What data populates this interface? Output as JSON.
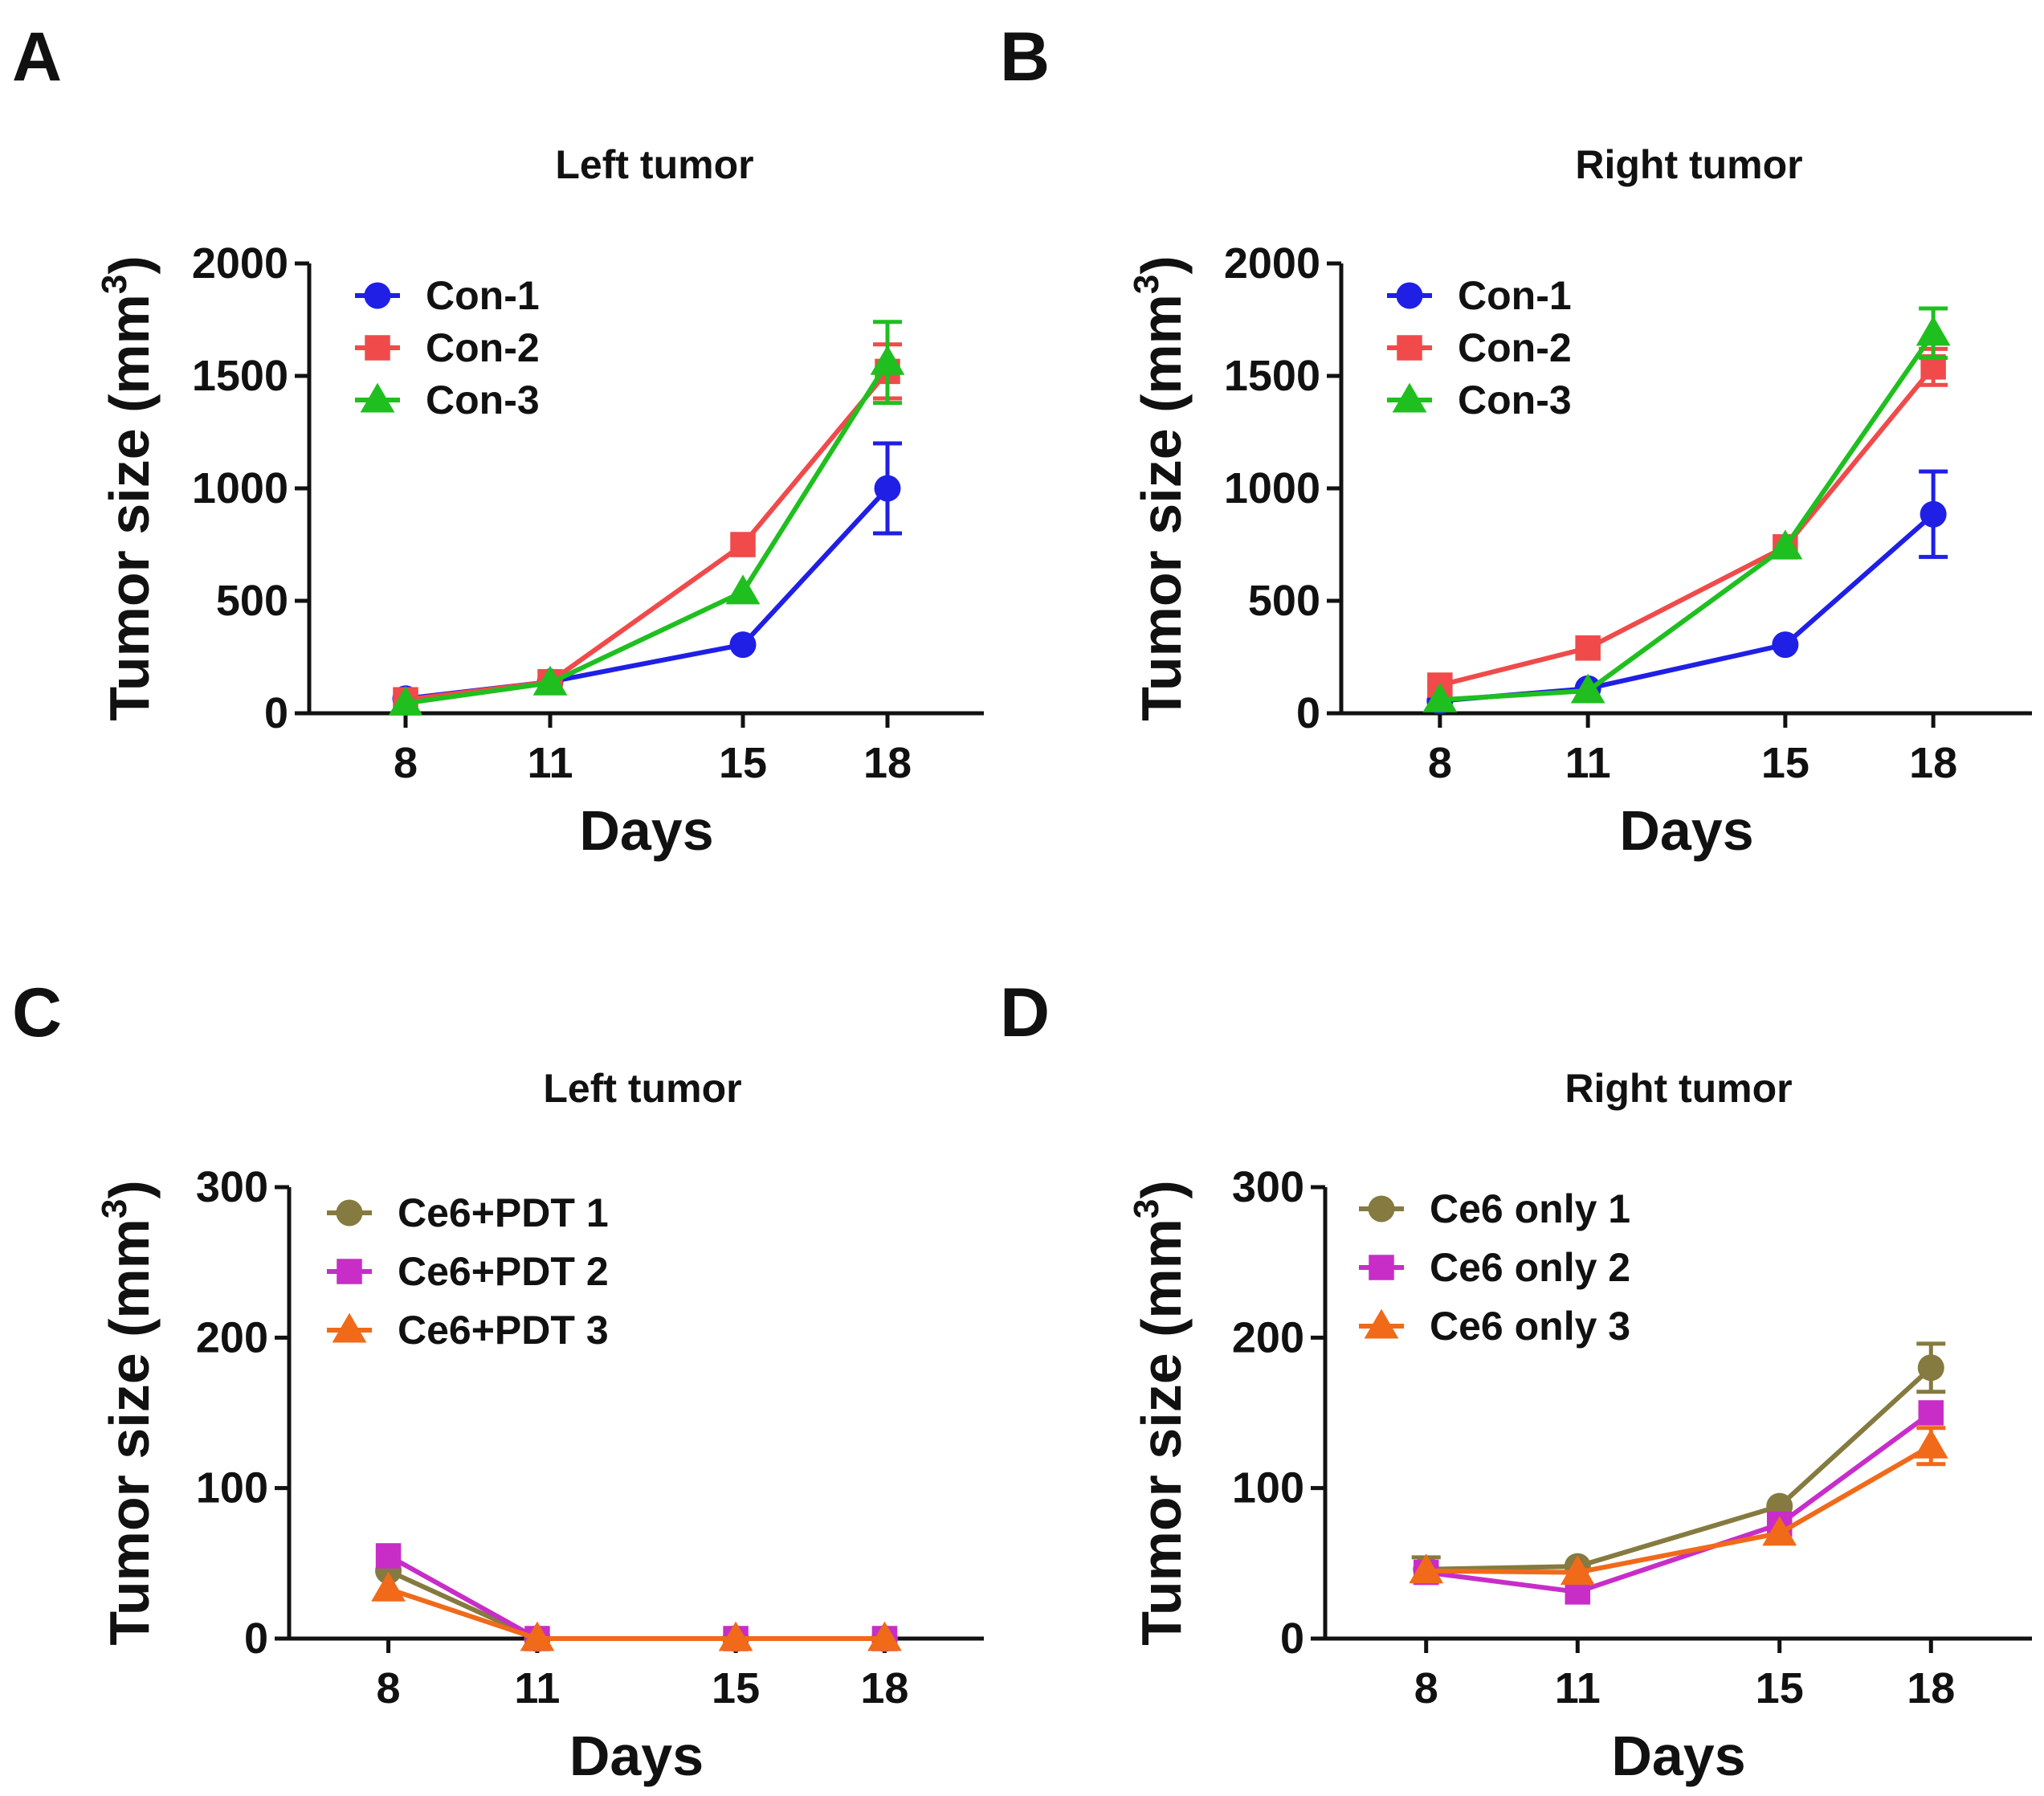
{
  "chart_data": [
    {
      "panel_label": "A",
      "type": "line",
      "title": "Left tumor",
      "xlabel": "Days",
      "ylabel": "Tumor size (mm",
      "ylabel_sup": "3",
      "ylabel_close": ")",
      "x": [
        8,
        11,
        15,
        18
      ],
      "x_tick_labels": [
        "8",
        "11",
        "15",
        "18"
      ],
      "xlim": [
        6,
        20
      ],
      "ylim": [
        0,
        2000
      ],
      "y_ticks": [
        0,
        500,
        1000,
        1500,
        2000
      ],
      "y_tick_labels": [
        "0",
        "500",
        "1000",
        "1500",
        "2000"
      ],
      "legend_position": "top-left",
      "series": [
        {
          "name": "Con-1",
          "color": "#1f1fe6",
          "marker": "circle",
          "values": [
            65,
            140,
            305,
            1000
          ],
          "errors": [
            0,
            0,
            0,
            200
          ]
        },
        {
          "name": "Con-2",
          "color": "#f04a4a",
          "marker": "square",
          "values": [
            60,
            140,
            750,
            1520
          ],
          "errors": [
            0,
            0,
            0,
            120
          ]
        },
        {
          "name": "Con-3",
          "color": "#1fbf1f",
          "marker": "triangle",
          "values": [
            45,
            135,
            540,
            1560
          ],
          "errors": [
            0,
            0,
            0,
            180
          ]
        }
      ]
    },
    {
      "panel_label": "B",
      "type": "line",
      "title": "Right tumor",
      "xlabel": "Days",
      "ylabel": "Tumor size (mm",
      "ylabel_sup": "3",
      "ylabel_close": ")",
      "x": [
        8,
        11,
        15,
        18
      ],
      "x_tick_labels": [
        "8",
        "11",
        "15",
        "18"
      ],
      "xlim": [
        6,
        20
      ],
      "ylim": [
        0,
        2000
      ],
      "y_ticks": [
        0,
        500,
        1000,
        1500,
        2000
      ],
      "y_tick_labels": [
        "0",
        "500",
        "1000",
        "1500",
        "2000"
      ],
      "legend_position": "top-left",
      "series": [
        {
          "name": "Con-1",
          "color": "#1f1fe6",
          "marker": "circle",
          "values": [
            55,
            110,
            305,
            885
          ],
          "errors": [
            0,
            0,
            0,
            190
          ]
        },
        {
          "name": "Con-2",
          "color": "#f04a4a",
          "marker": "square",
          "values": [
            125,
            290,
            740,
            1540
          ],
          "errors": [
            0,
            0,
            0,
            80
          ]
        },
        {
          "name": "Con-3",
          "color": "#1fbf1f",
          "marker": "triangle",
          "values": [
            60,
            100,
            740,
            1690
          ],
          "errors": [
            0,
            0,
            0,
            110
          ]
        }
      ]
    },
    {
      "panel_label": "C",
      "type": "line",
      "title": "Left tumor",
      "xlabel": "Days",
      "ylabel": "Tumor size (mm",
      "ylabel_sup": "3",
      "ylabel_close": ")",
      "x": [
        8,
        11,
        15,
        18
      ],
      "x_tick_labels": [
        "8",
        "11",
        "15",
        "18"
      ],
      "xlim": [
        6,
        20
      ],
      "ylim": [
        0,
        300
      ],
      "y_ticks": [
        0,
        100,
        200,
        300
      ],
      "y_tick_labels": [
        "0",
        "100",
        "200",
        "300"
      ],
      "legend_position": "top-left",
      "series": [
        {
          "name": "Ce6+PDT 1",
          "color": "#857a3f",
          "marker": "circle",
          "values": [
            45,
            0,
            0,
            0
          ],
          "errors": [
            0,
            0,
            0,
            0
          ]
        },
        {
          "name": "Ce6+PDT 2",
          "color": "#c82dc8",
          "marker": "square",
          "values": [
            55,
            0,
            0,
            0
          ],
          "errors": [
            0,
            0,
            0,
            0
          ]
        },
        {
          "name": "Ce6+PDT 3",
          "color": "#f06a1a",
          "marker": "triangle",
          "values": [
            33,
            0,
            0,
            0
          ],
          "errors": [
            0,
            0,
            0,
            0
          ]
        }
      ]
    },
    {
      "panel_label": "D",
      "type": "line",
      "title": "Right tumor",
      "xlabel": "Days",
      "ylabel": "Tumor size (mm",
      "ylabel_sup": "3",
      "ylabel_close": ")",
      "x": [
        8,
        11,
        15,
        18
      ],
      "x_tick_labels": [
        "8",
        "11",
        "15",
        "18"
      ],
      "xlim": [
        6,
        20
      ],
      "ylim": [
        0,
        300
      ],
      "y_ticks": [
        0,
        100,
        200,
        300
      ],
      "y_tick_labels": [
        "0",
        "100",
        "200",
        "300"
      ],
      "legend_position": "top-left",
      "series": [
        {
          "name": "Ce6 only 1",
          "color": "#857a3f",
          "marker": "circle",
          "values": [
            46,
            48,
            88,
            180
          ],
          "errors": [
            8,
            0,
            0,
            16
          ]
        },
        {
          "name": "Ce6 only 2",
          "color": "#c82dc8",
          "marker": "square",
          "values": [
            44,
            31,
            76,
            150
          ],
          "errors": [
            0,
            0,
            0,
            0
          ]
        },
        {
          "name": "Ce6 only 3",
          "color": "#f06a1a",
          "marker": "triangle",
          "values": [
            45,
            44,
            70,
            128
          ],
          "errors": [
            0,
            0,
            0,
            12
          ]
        }
      ]
    }
  ]
}
